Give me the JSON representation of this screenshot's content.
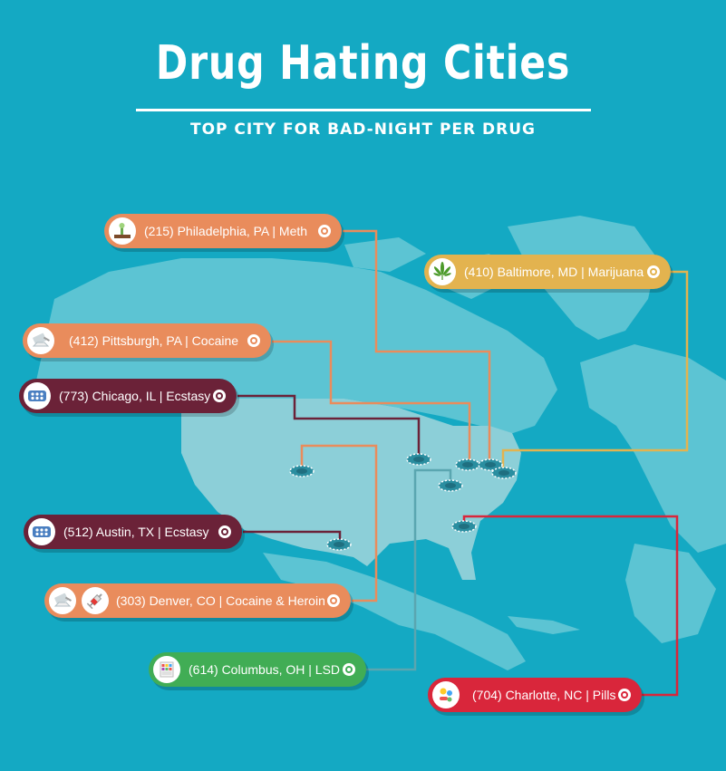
{
  "header": {
    "title": "Drug Hating Cities",
    "subtitle": "TOP CITY FOR BAD-NIGHT PER DRUG"
  },
  "colors": {
    "background": "#14a9c3",
    "land": "#5cc4d3",
    "usa": "#8ccfd8",
    "orange": "#e98c5c",
    "yellow": "#e3b34f",
    "maroon": "#6b2238",
    "green": "#41ad55",
    "red": "#d9263b"
  },
  "labels": [
    {
      "id": "philadelphia",
      "text": "(215) Philadelphia, PA | Meth",
      "color": "orange",
      "icons": [
        "meth-icon"
      ]
    },
    {
      "id": "baltimore",
      "text": "(410) Baltimore, MD | Marijuana",
      "color": "yellow",
      "icons": [
        "marijuana-leaf-icon"
      ]
    },
    {
      "id": "pittsburgh",
      "text": "(412) Pittsburgh, PA | Cocaine",
      "color": "orange",
      "icons": [
        "cocaine-icon"
      ]
    },
    {
      "id": "chicago",
      "text": "(773) Chicago, IL | Ecstasy",
      "color": "maroon",
      "icons": [
        "ecstasy-pills-icon"
      ]
    },
    {
      "id": "austin",
      "text": "(512) Austin, TX | Ecstasy",
      "color": "maroon",
      "icons": [
        "ecstasy-pills-icon"
      ]
    },
    {
      "id": "denver",
      "text": "(303) Denver, CO | Cocaine & Heroin",
      "color": "orange",
      "icons": [
        "cocaine-icon",
        "syringe-icon"
      ]
    },
    {
      "id": "columbus",
      "text": "(614) Columbus, OH | LSD",
      "color": "green",
      "icons": [
        "lsd-icon"
      ]
    },
    {
      "id": "charlotte",
      "text": "(704) Charlotte, NC | Pills",
      "color": "red",
      "icons": [
        "pills-icon"
      ]
    }
  ]
}
